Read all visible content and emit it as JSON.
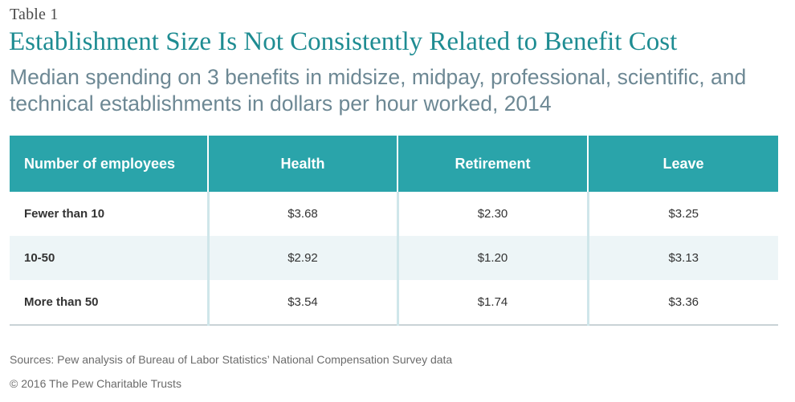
{
  "header": {
    "table_label": "Table 1",
    "title": "Establishment Size Is Not Consistently Related to Benefit Cost",
    "subtitle": "Median spending on 3 benefits in midsize, midpay, professional, scientific, and technical establishments in dollars per hour worked, 2014"
  },
  "chart_data": {
    "type": "table",
    "title": "Establishment Size Is Not Consistently Related to Benefit Cost",
    "subtitle": "Median spending on 3 benefits in midsize, midpay, professional, scientific, and technical establishments in dollars per hour worked, 2014",
    "columns": [
      "Number of employees",
      "Health",
      "Retirement",
      "Leave"
    ],
    "rows": [
      {
        "label": "Fewer than 10",
        "cells": [
          "$3.68",
          "$2.30",
          "$3.25"
        ]
      },
      {
        "label": "10-50",
        "cells": [
          "$2.92",
          "$1.20",
          "$3.13"
        ]
      },
      {
        "label": "More than 50",
        "cells": [
          "$3.54",
          "$1.74",
          "$3.36"
        ]
      }
    ],
    "values": {
      "Health": [
        3.68,
        2.92,
        3.54
      ],
      "Retirement": [
        2.3,
        1.2,
        1.74
      ],
      "Leave": [
        3.25,
        3.13,
        3.36
      ]
    }
  },
  "footer": {
    "sources": "Sources: Pew analysis of Bureau of Labor Statistics’ National Compensation Survey data",
    "copyright": "© 2016 The Pew Charitable Trusts"
  },
  "colors": {
    "title": "#1e8c92",
    "subtitle": "#6d8894",
    "header_bg": "#2aa4aa",
    "row_alt_bg": "#edf5f7",
    "column_divider": "#cfe6ea"
  }
}
